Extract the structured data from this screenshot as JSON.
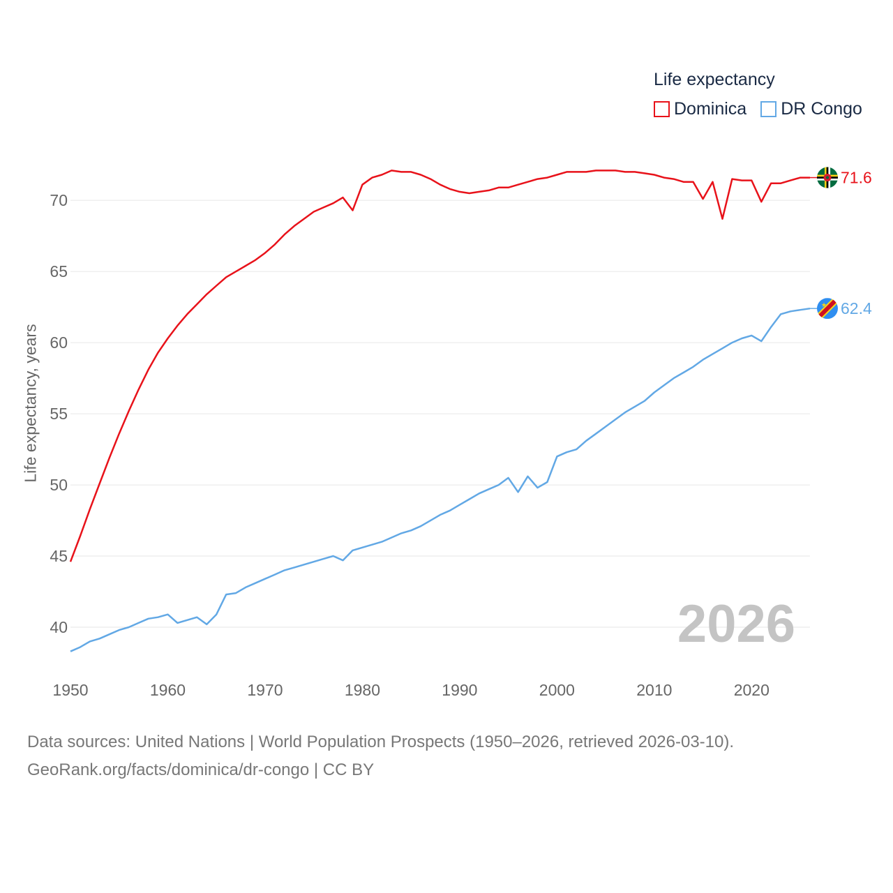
{
  "legend": {
    "title": "Life expectancy",
    "items": [
      {
        "label": "Dominica",
        "color": "#e8121a"
      },
      {
        "label": "DR Congo",
        "color": "#62a8e5"
      }
    ]
  },
  "year_watermark": "2026",
  "source_line1": "Data sources: United Nations | World Population Prospects (1950–2026, retrieved 2026-03-10).",
  "source_line2": "GeoRank.org/facts/dominica/dr-congo | CC BY",
  "chart_data": {
    "type": "line",
    "title": "Life expectancy",
    "xlabel": "",
    "ylabel": "Life expectancy, years",
    "xlim": [
      1950,
      2026
    ],
    "ylim": [
      37.5,
      73
    ],
    "xticks": [
      1950,
      1960,
      1970,
      1980,
      1990,
      2000,
      2010,
      2020
    ],
    "yticks": [
      40,
      45,
      50,
      55,
      60,
      65,
      70
    ],
    "grid": true,
    "legend_position": "top-right",
    "series": [
      {
        "name": "Dominica",
        "color": "#e8121a",
        "end_label": "71.6",
        "flag": "dominica-flag",
        "x": [
          1950,
          1951,
          1952,
          1953,
          1954,
          1955,
          1956,
          1957,
          1958,
          1959,
          1960,
          1961,
          1962,
          1963,
          1964,
          1965,
          1966,
          1967,
          1968,
          1969,
          1970,
          1971,
          1972,
          1973,
          1974,
          1975,
          1976,
          1977,
          1978,
          1979,
          1980,
          1981,
          1982,
          1983,
          1984,
          1985,
          1986,
          1987,
          1988,
          1989,
          1990,
          1991,
          1992,
          1993,
          1994,
          1995,
          1996,
          1997,
          1998,
          1999,
          2000,
          2001,
          2002,
          2003,
          2004,
          2005,
          2006,
          2007,
          2008,
          2009,
          2010,
          2011,
          2012,
          2013,
          2014,
          2015,
          2016,
          2017,
          2018,
          2019,
          2020,
          2021,
          2022,
          2023,
          2024,
          2025,
          2026
        ],
        "values": [
          44.6,
          46.4,
          48.3,
          50.1,
          51.9,
          53.6,
          55.2,
          56.7,
          58.1,
          59.3,
          60.3,
          61.2,
          62.0,
          62.7,
          63.4,
          64.0,
          64.6,
          65.0,
          65.4,
          65.8,
          66.3,
          66.9,
          67.6,
          68.2,
          68.7,
          69.2,
          69.5,
          69.8,
          70.2,
          69.3,
          71.1,
          71.6,
          71.8,
          72.1,
          72.0,
          72.0,
          71.8,
          71.5,
          71.1,
          70.8,
          70.6,
          70.5,
          70.6,
          70.7,
          70.9,
          70.9,
          71.1,
          71.3,
          71.5,
          71.6,
          71.8,
          72.0,
          72.0,
          72.0,
          72.1,
          72.1,
          72.1,
          72.0,
          72.0,
          71.9,
          71.8,
          71.6,
          71.5,
          71.3,
          71.3,
          70.1,
          71.3,
          68.7,
          71.5,
          71.4,
          71.4,
          69.9,
          71.2,
          71.2,
          71.4,
          71.6,
          71.6
        ]
      },
      {
        "name": "DR Congo",
        "color": "#62a8e5",
        "end_label": "62.4",
        "flag": "dr-congo-flag",
        "x": [
          1950,
          1951,
          1952,
          1953,
          1954,
          1955,
          1956,
          1957,
          1958,
          1959,
          1960,
          1961,
          1962,
          1963,
          1964,
          1965,
          1966,
          1967,
          1968,
          1969,
          1970,
          1971,
          1972,
          1973,
          1974,
          1975,
          1976,
          1977,
          1978,
          1979,
          1980,
          1981,
          1982,
          1983,
          1984,
          1985,
          1986,
          1987,
          1988,
          1989,
          1990,
          1991,
          1992,
          1993,
          1994,
          1995,
          1996,
          1997,
          1998,
          1999,
          2000,
          2001,
          2002,
          2003,
          2004,
          2005,
          2006,
          2007,
          2008,
          2009,
          2010,
          2011,
          2012,
          2013,
          2014,
          2015,
          2016,
          2017,
          2018,
          2019,
          2020,
          2021,
          2022,
          2023,
          2024,
          2025,
          2026
        ],
        "values": [
          38.3,
          38.6,
          39.0,
          39.2,
          39.5,
          39.8,
          40.0,
          40.3,
          40.6,
          40.7,
          40.9,
          40.3,
          40.5,
          40.7,
          40.2,
          40.9,
          42.3,
          42.4,
          42.8,
          43.1,
          43.4,
          43.7,
          44.0,
          44.2,
          44.4,
          44.6,
          44.8,
          45.0,
          44.7,
          45.4,
          45.6,
          45.8,
          46.0,
          46.3,
          46.6,
          46.8,
          47.1,
          47.5,
          47.9,
          48.2,
          48.6,
          49.0,
          49.4,
          49.7,
          50.0,
          50.5,
          49.5,
          50.6,
          49.8,
          50.2,
          52.0,
          52.3,
          52.5,
          53.1,
          53.6,
          54.1,
          54.6,
          55.1,
          55.5,
          55.9,
          56.5,
          57.0,
          57.5,
          57.9,
          58.3,
          58.8,
          59.2,
          59.6,
          60.0,
          60.3,
          60.5,
          60.1,
          61.1,
          62.0,
          62.2,
          62.3,
          62.4
        ]
      }
    ]
  }
}
